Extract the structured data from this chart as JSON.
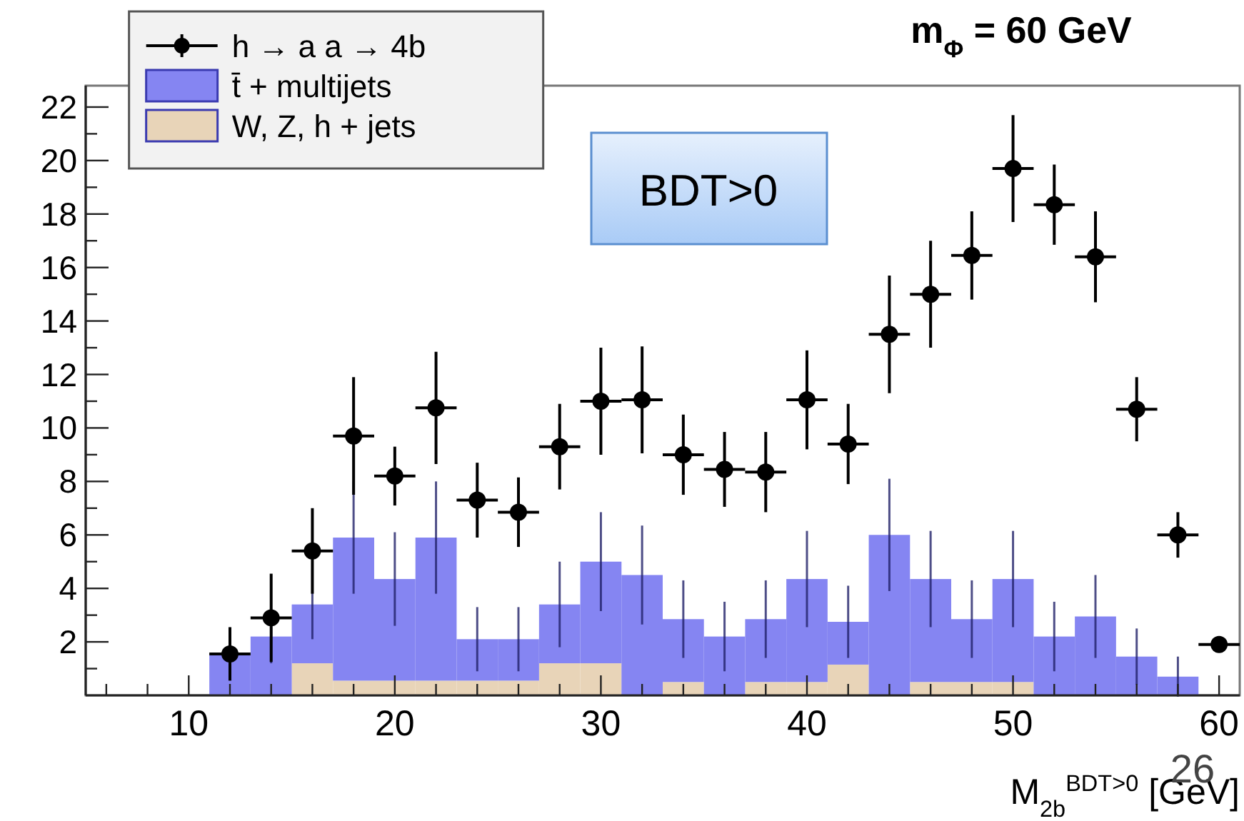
{
  "chart_data": {
    "type": "bar",
    "title": "m$_{Φ}$ = 60 GeV",
    "xlabel": "M$_{2b}$$^{BDT>0}$ [GeV]",
    "annotations": [
      "BDT>0",
      "26"
    ],
    "x": [
      12,
      14,
      16,
      18,
      20,
      22,
      24,
      26,
      28,
      30,
      32,
      34,
      36,
      38,
      40,
      42,
      44,
      46,
      48,
      50,
      52,
      54,
      56,
      58,
      60
    ],
    "stacked": true,
    "series": [
      {
        "name": "W, Z, h + jets",
        "color": "#e8d4b8",
        "values": [
          0,
          0,
          1.2,
          0.55,
          0.55,
          0.55,
          0.55,
          0.55,
          1.2,
          1.2,
          0,
          0.5,
          0,
          0.5,
          0.5,
          1.15,
          0,
          0.5,
          0.5,
          0.5,
          0,
          0,
          0,
          0,
          0
        ]
      },
      {
        "name": "t̄ + multijets",
        "color": "#8585f2",
        "values": [
          1.5,
          2.2,
          2.2,
          5.35,
          3.8,
          5.35,
          1.55,
          1.55,
          2.2,
          3.8,
          4.5,
          2.35,
          2.2,
          2.35,
          3.85,
          1.6,
          6.0,
          3.85,
          2.35,
          3.85,
          2.2,
          2.95,
          1.45,
          0.7,
          0
        ],
        "errors": [
          null,
          1.0,
          1.3,
          2.1,
          1.75,
          2.1,
          1.2,
          1.2,
          1.6,
          1.85,
          1.85,
          1.45,
          1.3,
          1.45,
          1.8,
          1.35,
          2.1,
          1.8,
          1.45,
          1.8,
          1.3,
          1.55,
          1.05,
          0.75,
          null
        ]
      },
      {
        "name": "h → a a  → 4b",
        "type": "scatter",
        "color": "#000000",
        "marker": "circle",
        "xerrors": [
          1,
          1,
          1,
          1,
          1,
          1,
          1,
          1,
          1,
          1,
          1,
          1,
          1,
          1,
          1,
          1,
          1,
          1,
          1,
          1,
          1,
          1,
          1,
          1,
          1
        ],
        "values": [
          1.55,
          2.9,
          5.4,
          9.7,
          8.2,
          10.75,
          7.3,
          6.85,
          9.3,
          11.0,
          11.05,
          9.0,
          8.45,
          8.35,
          11.05,
          9.4,
          13.5,
          15.0,
          16.45,
          19.7,
          18.35,
          16.4,
          10.7,
          6.0,
          1.9
        ],
        "errors": [
          1.0,
          1.65,
          1.6,
          2.2,
          1.1,
          2.1,
          1.4,
          1.3,
          1.6,
          2.0,
          2.0,
          1.5,
          1.4,
          1.5,
          1.85,
          1.5,
          2.2,
          2.0,
          1.65,
          2.0,
          1.5,
          1.7,
          1.2,
          0.85,
          null
        ]
      }
    ],
    "xlim": [
      5,
      61
    ],
    "xticks": [
      {
        "value": 6,
        "label": null
      },
      {
        "value": 8,
        "label": null
      },
      10,
      {
        "value": 12,
        "label": null
      },
      {
        "value": 14,
        "label": null
      },
      {
        "value": 16,
        "label": null
      },
      {
        "value": 18,
        "label": null
      },
      20,
      {
        "value": 22,
        "label": null
      },
      {
        "value": 24,
        "label": null
      },
      {
        "value": 26,
        "label": null
      },
      {
        "value": 28,
        "label": null
      },
      30,
      {
        "value": 32,
        "label": null
      },
      {
        "value": 34,
        "label": null
      },
      {
        "value": 36,
        "label": null
      },
      {
        "value": 38,
        "label": null
      },
      40,
      {
        "value": 42,
        "label": null
      },
      {
        "value": 44,
        "label": null
      },
      {
        "value": 46,
        "label": null
      },
      {
        "value": 48,
        "label": null
      },
      50,
      {
        "value": 52,
        "label": null
      },
      {
        "value": 54,
        "label": null
      },
      {
        "value": 56,
        "label": null
      },
      {
        "value": 58,
        "label": null
      },
      60
    ],
    "ylim": [
      0,
      22.8
    ],
    "yticks": [
      {
        "value": 1,
        "label": null
      },
      2,
      {
        "value": 3,
        "label": null
      },
      4,
      {
        "value": 5,
        "label": null
      },
      6,
      {
        "value": 7,
        "label": null
      },
      8,
      {
        "value": 9,
        "label": null
      },
      10,
      {
        "value": 11,
        "label": null
      },
      12,
      {
        "value": 13,
        "label": null
      },
      14,
      {
        "value": 15,
        "label": null
      },
      16,
      {
        "value": 17,
        "label": null
      },
      18,
      {
        "value": 19,
        "label": null
      },
      20,
      {
        "value": 21,
        "label": null
      },
      22
    ],
    "grid": false,
    "legend": "top left"
  }
}
